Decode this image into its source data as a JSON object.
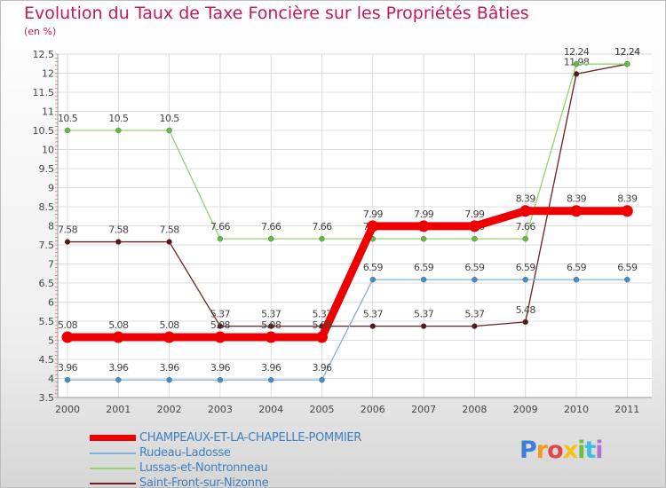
{
  "title": "Evolution du Taux de Taxe Foncière sur les Propriétés Bâties",
  "subtitle": "(en %)",
  "brand": "Proxiti",
  "chart_data": {
    "type": "line",
    "x": [
      "2000",
      "2001",
      "2002",
      "2003",
      "2004",
      "2005",
      "2006",
      "2007",
      "2008",
      "2009",
      "2010",
      "2011"
    ],
    "ylim": [
      3.5,
      12.5
    ],
    "yticks": [
      "3.5",
      "4",
      "4.5",
      "5",
      "5.5",
      "6",
      "6.5",
      "7",
      "7.5",
      "8",
      "8.5",
      "9",
      "9.5",
      "10",
      "10.5",
      "11",
      "11.5",
      "12",
      "12.5"
    ],
    "grid": true,
    "legend_position": "bottom",
    "series": [
      {
        "name": "Saint-Front-sur-Nizonne",
        "color": "#6b1f1f",
        "marker": "#5a1515",
        "values": [
          7.58,
          7.58,
          7.58,
          5.37,
          5.37,
          5.37,
          5.37,
          5.37,
          5.37,
          5.48,
          11.98,
          12.24
        ],
        "labels": [
          "7.58",
          "7.58",
          "7.58",
          "5.37",
          "5.37",
          "5.37",
          "5.37",
          "5.37",
          "5.37",
          "5.48",
          "11.98",
          "12.24"
        ]
      },
      {
        "name": "Lussas-et-Nontronneau",
        "color": "#8fd66b",
        "marker": "#5fbf3c",
        "values": [
          10.5,
          10.5,
          10.5,
          7.66,
          7.66,
          7.66,
          7.66,
          7.66,
          7.66,
          7.66,
          12.24,
          12.24
        ],
        "labels": [
          "10.5",
          "10.5",
          "10.5",
          "7.66",
          "7.66",
          "7.66",
          "7.66",
          "7.66",
          "7.66",
          "7.66",
          "12.24",
          "12.24"
        ]
      },
      {
        "name": "Rudeau-Ladosse",
        "color": "#7fb0d8",
        "marker": "#3f8fd0",
        "values": [
          3.96,
          3.96,
          3.96,
          3.96,
          3.96,
          3.96,
          6.59,
          6.59,
          6.59,
          6.59,
          6.59,
          6.59
        ],
        "labels": [
          "3.96",
          "3.96",
          "3.96",
          "3.96",
          "3.96",
          "3.96",
          "6.59",
          "6.59",
          "6.59",
          "6.59",
          "6.59",
          "6.59"
        ]
      },
      {
        "name": "CHAMPEAUX-ET-LA-CHAPELLE-POMMIER",
        "color": "#ee0000",
        "marker": "#ee0000",
        "values": [
          5.08,
          5.08,
          5.08,
          5.08,
          5.08,
          5.08,
          7.99,
          7.99,
          7.99,
          8.39,
          8.39,
          8.39
        ],
        "labels": [
          "5.08",
          "5.08",
          "5.08",
          "5.08",
          "5.08",
          "5.08",
          "7.99",
          "7.99",
          "7.99",
          "8.39",
          "8.39",
          "8.39"
        ]
      }
    ]
  },
  "legend": [
    {
      "label": "CHAMPEAUX-ET-LA-CHAPELLE-POMMIER",
      "color": "#ee0000",
      "thick": true
    },
    {
      "label": "Rudeau-Ladosse",
      "color": "#7fb0d8",
      "thick": false
    },
    {
      "label": "Lussas-et-Nontronneau",
      "color": "#8fd66b",
      "thick": false
    },
    {
      "label": "Saint-Front-sur-Nizonne",
      "color": "#6b1f1f",
      "thick": false
    }
  ]
}
